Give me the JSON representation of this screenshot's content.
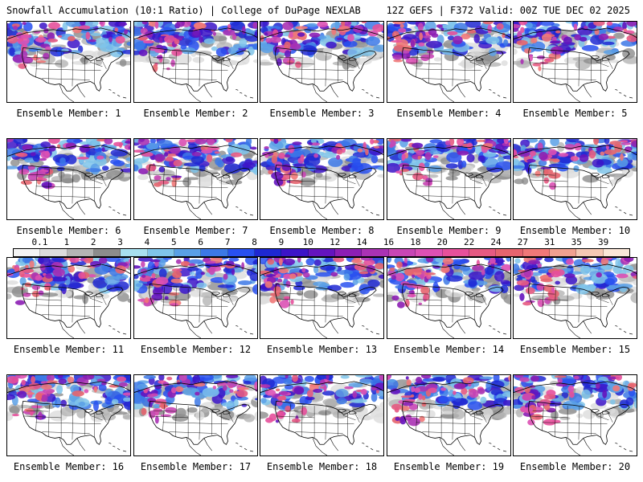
{
  "header": {
    "title_left": "Snowfall Accumulation (10:1 Ratio) | College of DuPage NEXLAB",
    "title_right": "12Z GEFS | F372 Valid: 00Z TUE DEC 02 2025"
  },
  "colorbar": {
    "ticks": [
      "0.1",
      "1",
      "2",
      "3",
      "4",
      "5",
      "6",
      "7",
      "8",
      "9",
      "10",
      "12",
      "14",
      "16",
      "18",
      "20",
      "22",
      "24",
      "27",
      "31",
      "35",
      "39"
    ],
    "colors": [
      "#f4f4f4",
      "#dcdcdc",
      "#b4b4b4",
      "#8c8c8c",
      "#a8e0f0",
      "#7fc4ea",
      "#5aa0e6",
      "#3c78e6",
      "#2850f0",
      "#1e28d2",
      "#3c14c8",
      "#6414be",
      "#8c1eb4",
      "#aa32b4",
      "#c846b4",
      "#dc50b4",
      "#e6509b",
      "#e65a82",
      "#e6646e",
      "#f07878",
      "#f0a090",
      "#f5c8b4",
      "#fae6d7"
    ]
  },
  "panels": [
    {
      "label": "Ensemble Member: 1"
    },
    {
      "label": "Ensemble Member: 2"
    },
    {
      "label": "Ensemble Member: 3"
    },
    {
      "label": "Ensemble Member: 4"
    },
    {
      "label": "Ensemble Member: 5"
    },
    {
      "label": "Ensemble Member: 6"
    },
    {
      "label": "Ensemble Member: 7"
    },
    {
      "label": "Ensemble Member: 8"
    },
    {
      "label": "Ensemble Member: 9"
    },
    {
      "label": "Ensemble Member: 10"
    },
    {
      "label": "Ensemble Member: 11"
    },
    {
      "label": "Ensemble Member: 12"
    },
    {
      "label": "Ensemble Member: 13"
    },
    {
      "label": "Ensemble Member: 14"
    },
    {
      "label": "Ensemble Member: 15"
    },
    {
      "label": "Ensemble Member: 16"
    },
    {
      "label": "Ensemble Member: 17"
    },
    {
      "label": "Ensemble Member: 18"
    },
    {
      "label": "Ensemble Member: 19"
    },
    {
      "label": "Ensemble Member: 20"
    }
  ]
}
